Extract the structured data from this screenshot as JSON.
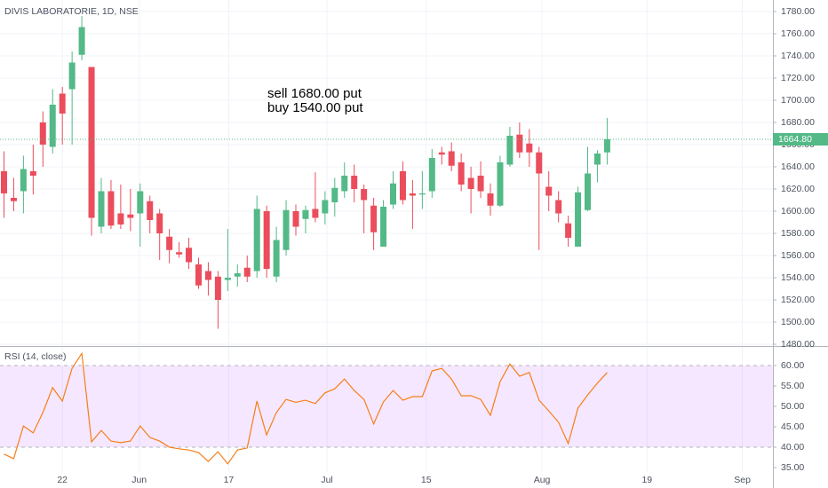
{
  "chart_data": [
    {
      "type": "candlestick",
      "title": "DIVIS LABORATORIE, 1D, NSE",
      "annotations": [
        "sell 1680.00 put",
        "buy 1540.00 put"
      ],
      "up_color": "#53b987",
      "down_color": "#eb4d5c",
      "open": [
        1636,
        1612,
        1618,
        1636,
        1680,
        1658,
        1706,
        1710,
        1741,
        1730,
        1586,
        1618,
        1598,
        1597,
        1598,
        1609,
        1598,
        1577,
        1563,
        1567,
        1552,
        1546,
        1541,
        1538,
        1541,
        1549,
        1546,
        1600,
        1541,
        1565,
        1600,
        1593,
        1602,
        1598,
        1608,
        1618,
        1632,
        1620,
        1605,
        1568,
        1606,
        1636,
        1616,
        1615,
        1618,
        1653,
        1654,
        1644,
        1630,
        1632,
        1616,
        1605,
        1642,
        1669,
        1661,
        1653,
        1622,
        1610,
        1589,
        1568,
        1601,
        1642,
        1653
      ],
      "high": [
        1654,
        1630,
        1650,
        1660,
        1690,
        1710,
        1712,
        1744,
        1776,
        1730,
        1630,
        1628,
        1624,
        1620,
        1625,
        1614,
        1602,
        1584,
        1572,
        1576,
        1558,
        1554,
        1546,
        1584,
        1552,
        1560,
        1614,
        1605,
        1586,
        1610,
        1606,
        1605,
        1635,
        1618,
        1630,
        1644,
        1642,
        1624,
        1612,
        1610,
        1636,
        1645,
        1628,
        1636,
        1656,
        1658,
        1662,
        1652,
        1640,
        1645,
        1625,
        1650,
        1676,
        1680,
        1674,
        1658,
        1636,
        1618,
        1596,
        1622,
        1658,
        1655,
        1684
      ],
      "low": [
        1594,
        1600,
        1598,
        1615,
        1640,
        1652,
        1660,
        1660,
        1736,
        1578,
        1580,
        1584,
        1584,
        1582,
        1568,
        1580,
        1556,
        1553,
        1558,
        1548,
        1530,
        1524,
        1494,
        1528,
        1532,
        1536,
        1540,
        1540,
        1536,
        1560,
        1578,
        1580,
        1590,
        1588,
        1595,
        1612,
        1608,
        1580,
        1565,
        1568,
        1602,
        1606,
        1584,
        1602,
        1612,
        1642,
        1636,
        1618,
        1598,
        1612,
        1596,
        1604,
        1640,
        1648,
        1640,
        1565,
        1600,
        1590,
        1568,
        1568,
        1600,
        1626,
        1642
      ],
      "close": [
        1616,
        1609,
        1638,
        1632,
        1660,
        1696,
        1688,
        1734,
        1766,
        1594,
        1618,
        1587,
        1588,
        1594,
        1618,
        1592,
        1580,
        1565,
        1561,
        1554,
        1533,
        1538,
        1520,
        1540,
        1544,
        1541,
        1602,
        1548,
        1574,
        1601,
        1586,
        1601,
        1594,
        1610,
        1621,
        1632,
        1620,
        1610,
        1581,
        1604,
        1625,
        1610,
        1614,
        1616,
        1648,
        1651,
        1641,
        1624,
        1620,
        1618,
        1605,
        1644,
        1668,
        1653,
        1653,
        1634,
        1614,
        1598,
        1576,
        1617,
        1634,
        1652,
        1664.8
      ],
      "price_line": {
        "value": 1664.8,
        "label": "1664.80"
      },
      "xlim": [
        -0.41,
        79.04
      ],
      "ylim": [
        1478.4,
        1790.4
      ],
      "yticks": [
        {
          "value": 1480,
          "label": "1480.00"
        },
        {
          "value": 1500,
          "label": "1500.00"
        },
        {
          "value": 1520,
          "label": "1520.00"
        },
        {
          "value": 1540,
          "label": "1540.00"
        },
        {
          "value": 1560,
          "label": "1560.00"
        },
        {
          "value": 1580,
          "label": "1580.00"
        },
        {
          "value": 1600,
          "label": "1600.00"
        },
        {
          "value": 1620,
          "label": "1620.00"
        },
        {
          "value": 1640,
          "label": "1640.00"
        },
        {
          "value": 1660,
          "label": "1660.00"
        },
        {
          "value": 1680,
          "label": "1680.00"
        },
        {
          "value": 1700,
          "label": "1700.00"
        },
        {
          "value": 1720,
          "label": "1720.00"
        },
        {
          "value": 1740,
          "label": "1740.00"
        },
        {
          "value": 1760,
          "label": "1760.00"
        },
        {
          "value": 1780,
          "label": "1780.00"
        }
      ]
    },
    {
      "type": "line",
      "title": "RSI (14, close)",
      "color": "#f57f17",
      "values": [
        38.3,
        37.2,
        45.2,
        43.5,
        48.5,
        54.6,
        51.3,
        59.3,
        63,
        41.3,
        44.1,
        41.5,
        41.1,
        41.5,
        45.2,
        42.4,
        41.5,
        40,
        39.6,
        39.3,
        38.7,
        36.5,
        38.9,
        35.9,
        39.3,
        39.8,
        51.3,
        43,
        48.5,
        51.7,
        51,
        51.5,
        50.7,
        53.3,
        54.3,
        56.7,
        53.9,
        51.7,
        45.7,
        51.1,
        53.9,
        51.5,
        52.4,
        52.4,
        58.7,
        59.3,
        56.7,
        52.6,
        52.6,
        51.7,
        47.8,
        56.1,
        60.4,
        57.4,
        58.3,
        51.5,
        48.9,
        46.1,
        40.9,
        49.6,
        52.8,
        55.7,
        58.3
      ],
      "band": [
        40,
        60
      ],
      "xlim": [
        -0.41,
        79.04
      ],
      "ylim": [
        33.91,
        64.57
      ],
      "yticks": [
        {
          "value": 35,
          "label": "35.00"
        },
        {
          "value": 40,
          "label": "40.00"
        },
        {
          "value": 45,
          "label": "45.00"
        },
        {
          "value": 50,
          "label": "50.00"
        },
        {
          "value": 55,
          "label": "55.00"
        },
        {
          "value": 60,
          "label": "60.00"
        }
      ],
      "xticks": [
        {
          "value": 6,
          "label": "22"
        },
        {
          "value": 13.9,
          "label": "Jun"
        },
        {
          "value": 23.1,
          "label": "17"
        },
        {
          "value": 33.2,
          "label": "Jul"
        },
        {
          "value": 43.4,
          "label": "15"
        },
        {
          "value": 55.3,
          "label": "Aug"
        },
        {
          "value": 66.1,
          "label": "19"
        },
        {
          "value": 75.9,
          "label": "Sep"
        }
      ]
    }
  ]
}
